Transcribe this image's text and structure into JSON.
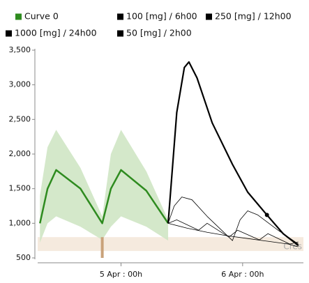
{
  "chart_data": {
    "type": "line",
    "xlim": [
      -17,
      36
    ],
    "xticks": [
      {
        "value": 0,
        "label": "5 Apr : 00h"
      },
      {
        "value": 24,
        "label": "6 Apr : 00h"
      }
    ],
    "ylim": [
      500,
      3500
    ],
    "yticks": [
      {
        "value": 500,
        "label": "500"
      },
      {
        "value": 1000,
        "label": "1,000"
      },
      {
        "value": 1500,
        "label": "1,500"
      },
      {
        "value": 2000,
        "label": "2,000"
      },
      {
        "value": 2500,
        "label": "2,500"
      },
      {
        "value": 3000,
        "label": "3,000"
      },
      {
        "value": 3500,
        "label": "3,500"
      }
    ],
    "grid": false,
    "legend": "top",
    "band": {
      "color": "#cfe5c4",
      "x": [
        -16,
        -14.5,
        -12.8,
        -8,
        -3.7,
        -2,
        0,
        5,
        9.3
      ],
      "upper": [
        1400,
        2100,
        2350,
        1800,
        1100,
        2000,
        2350,
        1750,
        1050
      ],
      "lower": [
        720,
        1000,
        1100,
        950,
        760,
        950,
        1100,
        950,
        750
      ]
    },
    "reference_range": [
      600,
      800
    ],
    "reference_label": "Cres",
    "marker_x": -3.7,
    "series": [
      {
        "name": "Curve 0",
        "color": "#2e8b1f",
        "width": 2.5,
        "x": [
          -16,
          -14.5,
          -12.8,
          -8,
          -3.7,
          -2,
          0,
          5,
          9.3
        ],
        "values": [
          1000,
          1500,
          1770,
          1500,
          1000,
          1500,
          1770,
          1470,
          1000
        ]
      },
      {
        "name": "100 [mg] / 6h00",
        "color": "#000000",
        "width": 0.8,
        "x": [
          9.3,
          11,
          15.3,
          17,
          21.3,
          23,
          27.3,
          29,
          33.3,
          35
        ],
        "values": [
          1000,
          1050,
          900,
          1000,
          800,
          900,
          760,
          850,
          700,
          730
        ]
      },
      {
        "name": "250 [mg] / 12h00",
        "color": "#000000",
        "width": 0.8,
        "x": [
          9.3,
          10.5,
          12,
          14,
          17,
          22,
          23.5,
          25,
          27,
          31,
          35
        ],
        "values": [
          1000,
          1250,
          1380,
          1340,
          1100,
          750,
          1050,
          1180,
          1120,
          900,
          700
        ]
      },
      {
        "name": "1000 [mg] / 24h00",
        "color": "#000000",
        "width": 2.2,
        "x": [
          9.3,
          11,
          12.5,
          13.4,
          15,
          18,
          22,
          25,
          28.8,
          32,
          35
        ],
        "values": [
          1000,
          2600,
          3250,
          3330,
          3100,
          2450,
          1850,
          1450,
          1120,
          850,
          680
        ],
        "highlight_point": {
          "x": 28.8,
          "value": 1120
        }
      },
      {
        "name": "50 [mg] / 2h00",
        "color": "#000000",
        "width": 0.8,
        "x": [
          9.3,
          13,
          17,
          21,
          25,
          29,
          33,
          35
        ],
        "values": [
          1000,
          930,
          870,
          820,
          780,
          740,
          700,
          660
        ]
      }
    ]
  }
}
